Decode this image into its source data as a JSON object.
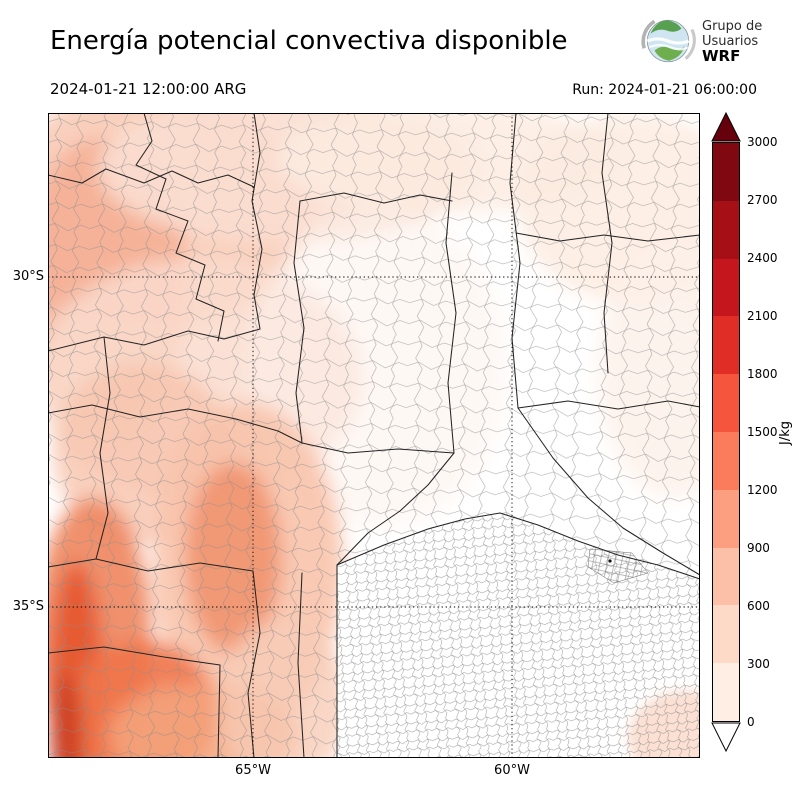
{
  "header": {
    "title": "Energía potencial convectiva disponible",
    "valid_time": "2024-01-21 12:00:00 ARG",
    "run_label": "Run: 2024-01-21 06:00:00"
  },
  "logo": {
    "line1": "Grupo de",
    "line2": "Usuarios",
    "line3": "WRF"
  },
  "axes": {
    "lat_ticks": [
      "30°S",
      "35°S"
    ],
    "lon_ticks": [
      "65°W",
      "60°W"
    ]
  },
  "colorbar": {
    "unit": "J/kg",
    "ticks": [
      "3000",
      "2700",
      "2400",
      "2100",
      "1800",
      "1500",
      "1200",
      "900",
      "600",
      "300",
      "0"
    ],
    "colors": [
      "#7f0811",
      "#a50f15",
      "#c4161c",
      "#e02d26",
      "#f5553d",
      "#fb7c5c",
      "#fc9e80",
      "#fcc0a8",
      "#fdd9c7",
      "#feeee4"
    ],
    "over_color": "#67000d",
    "under_color": "#ffffff"
  },
  "chart_data": {
    "type": "heatmap",
    "title": "Energía potencial convectiva disponible",
    "variable": "CAPE",
    "unit": "J/kg",
    "valid_time": "2024-01-21 12:00:00 ARG",
    "run_time": "2024-01-21 06:00:00",
    "levels": [
      0,
      300,
      600,
      900,
      1200,
      1500,
      1800,
      2100,
      2400,
      2700,
      3000
    ],
    "palette_low_to_high": [
      "#feeee4",
      "#fdd9c7",
      "#fcc0a8",
      "#fc9e80",
      "#fb7c5c",
      "#f5553d",
      "#e02d26",
      "#c4161c",
      "#a50f15",
      "#7f0811"
    ],
    "x_tick_labels": [
      "65°W",
      "60°W"
    ],
    "y_tick_labels": [
      "30°S",
      "35°S"
    ],
    "grid_style": "dotted",
    "colorbar_position": "right",
    "field_summary": [
      {
        "region": "northwest quadrant",
        "cape_jkg": "300-700"
      },
      {
        "region": "far west band near left edge",
        "cape_jkg": "600-900"
      },
      {
        "region": "southwest corner ridge",
        "cape_jkg": "1200-1800"
      },
      {
        "region": "south-central left column",
        "cape_jkg": "300-900"
      },
      {
        "region": "bottom-left lobes",
        "cape_jkg": "900-1200"
      },
      {
        "region": "center and east",
        "cape_jkg": "0-150"
      },
      {
        "region": "top edge and northeast corner",
        "cape_jkg": "100-300"
      },
      {
        "region": "southeast corner",
        "cape_jkg": "100-300"
      }
    ]
  }
}
